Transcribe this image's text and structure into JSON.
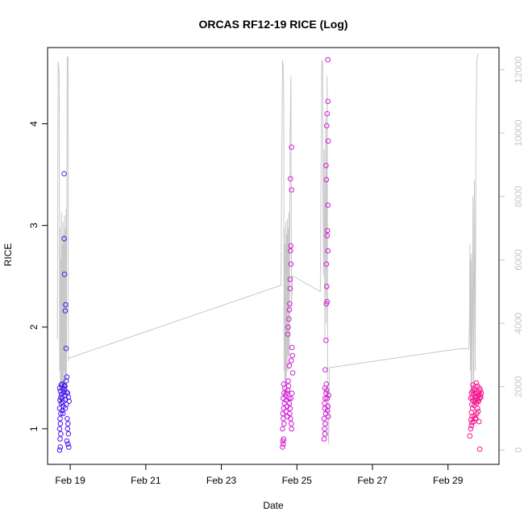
{
  "chart_data": {
    "type": "scatter",
    "title": "ORCAS RF12-19 RICE (Log)",
    "xlabel": "Date",
    "ylabel": "RICE",
    "x_ticks": [
      "Feb 19",
      "Feb 21",
      "Feb 23",
      "Feb 25",
      "Feb 27",
      "Feb 29"
    ],
    "x_tick_days": [
      19,
      21,
      23,
      25,
      27,
      29
    ],
    "xlim_days": [
      18.4,
      30.35
    ],
    "y_ticks": [
      "1",
      "2",
      "3",
      "4"
    ],
    "ylim": [
      0.65,
      4.75
    ],
    "y2_ticks": [
      "0",
      "2000",
      "4000",
      "6000",
      "8000",
      "10000",
      "12000"
    ],
    "y2lim": [
      -450,
      12700
    ],
    "grid": false,
    "series": [
      {
        "color": "#4b16f0",
        "points": [
          [
            18.72,
            0.79
          ],
          [
            18.74,
            0.82
          ],
          [
            18.73,
            0.9
          ],
          [
            18.75,
            0.95
          ],
          [
            18.72,
            1.0
          ],
          [
            18.74,
            1.05
          ],
          [
            18.73,
            1.1
          ],
          [
            18.75,
            1.15
          ],
          [
            18.72,
            1.2
          ],
          [
            18.76,
            1.25
          ],
          [
            18.73,
            1.28
          ],
          [
            18.75,
            1.31
          ],
          [
            18.77,
            1.34
          ],
          [
            18.74,
            1.37
          ],
          [
            18.72,
            1.4
          ],
          [
            18.76,
            1.43
          ],
          [
            18.78,
            1.3
          ],
          [
            18.8,
            1.26
          ],
          [
            18.82,
            1.22
          ],
          [
            18.79,
            1.18
          ],
          [
            18.81,
            1.15
          ],
          [
            18.83,
            1.36
          ],
          [
            18.85,
            1.39
          ],
          [
            18.84,
            1.42
          ],
          [
            18.86,
            1.33
          ],
          [
            18.88,
            1.29
          ],
          [
            18.9,
            1.24
          ],
          [
            18.87,
            1.2
          ],
          [
            18.92,
            1.1
          ],
          [
            18.94,
            1.05
          ],
          [
            18.93,
            1.0
          ],
          [
            18.95,
            0.95
          ],
          [
            18.91,
            0.88
          ],
          [
            18.94,
            0.85
          ],
          [
            18.96,
            0.82
          ],
          [
            18.93,
            1.35
          ],
          [
            18.95,
            1.31
          ],
          [
            18.97,
            1.27
          ],
          [
            18.89,
            1.47
          ],
          [
            18.91,
            1.51
          ],
          [
            18.84,
            3.51
          ],
          [
            18.84,
            2.87
          ],
          [
            18.85,
            2.52
          ],
          [
            18.87,
            2.16
          ],
          [
            18.88,
            2.22
          ],
          [
            18.89,
            1.79
          ],
          [
            18.8,
            1.4
          ],
          [
            18.78,
            1.44
          ],
          [
            18.86,
            1.42
          ],
          [
            18.9,
            1.36
          ]
        ]
      },
      {
        "color": "#d21ad8",
        "points": [
          [
            24.62,
            0.82
          ],
          [
            24.64,
            0.85
          ],
          [
            24.63,
            0.88
          ],
          [
            24.65,
            0.9
          ],
          [
            24.62,
            1.0
          ],
          [
            24.66,
            1.05
          ],
          [
            24.64,
            1.1
          ],
          [
            24.63,
            1.15
          ],
          [
            24.65,
            1.2
          ],
          [
            24.67,
            1.25
          ],
          [
            24.64,
            1.3
          ],
          [
            24.66,
            1.35
          ],
          [
            24.68,
            1.4
          ],
          [
            24.65,
            1.44
          ],
          [
            24.7,
            1.33
          ],
          [
            24.72,
            1.28
          ],
          [
            24.74,
            1.22
          ],
          [
            24.71,
            1.17
          ],
          [
            24.75,
            1.12
          ],
          [
            24.73,
            1.35
          ],
          [
            24.76,
            1.38
          ],
          [
            24.78,
            1.42
          ],
          [
            24.77,
            1.47
          ],
          [
            24.79,
            1.3
          ],
          [
            24.8,
            1.25
          ],
          [
            24.82,
            1.2
          ],
          [
            24.81,
            1.15
          ],
          [
            24.83,
            1.1
          ],
          [
            24.85,
            1.05
          ],
          [
            24.86,
            1.0
          ],
          [
            24.84,
            1.3
          ],
          [
            24.87,
            1.35
          ],
          [
            24.76,
            1.93
          ],
          [
            24.77,
            2.0
          ],
          [
            24.79,
            2.08
          ],
          [
            24.8,
            2.17
          ],
          [
            24.81,
            2.23
          ],
          [
            24.82,
            2.38
          ],
          [
            24.82,
            2.47
          ],
          [
            24.84,
            2.62
          ],
          [
            24.83,
            2.75
          ],
          [
            24.84,
            2.8
          ],
          [
            24.83,
            3.46
          ],
          [
            24.86,
            3.35
          ],
          [
            24.86,
            3.77
          ],
          [
            24.88,
            1.72
          ],
          [
            24.85,
            1.67
          ],
          [
            24.87,
            1.8
          ],
          [
            24.89,
            1.55
          ],
          [
            24.8,
            1.62
          ],
          [
            25.72,
            0.9
          ],
          [
            25.74,
            0.95
          ],
          [
            25.73,
            1.0
          ],
          [
            25.75,
            1.05
          ],
          [
            25.72,
            1.1
          ],
          [
            25.76,
            1.15
          ],
          [
            25.74,
            1.2
          ],
          [
            25.73,
            1.25
          ],
          [
            25.75,
            1.3
          ],
          [
            25.77,
            1.35
          ],
          [
            25.74,
            1.4
          ],
          [
            25.78,
            1.44
          ],
          [
            25.8,
            1.3
          ],
          [
            25.82,
            1.22
          ],
          [
            25.81,
            1.18
          ],
          [
            25.83,
            1.12
          ],
          [
            25.79,
            1.38
          ],
          [
            25.84,
            1.33
          ],
          [
            25.75,
            1.58
          ],
          [
            25.77,
            1.87
          ],
          [
            25.78,
            2.23
          ],
          [
            25.8,
            2.25
          ],
          [
            25.79,
            2.4
          ],
          [
            25.78,
            2.62
          ],
          [
            25.82,
            2.75
          ],
          [
            25.8,
            2.9
          ],
          [
            25.81,
            2.95
          ],
          [
            25.82,
            3.2
          ],
          [
            25.78,
            3.45
          ],
          [
            25.77,
            3.59
          ],
          [
            25.79,
            3.98
          ],
          [
            25.8,
            4.1
          ],
          [
            25.83,
            3.83
          ],
          [
            25.82,
            4.22
          ],
          [
            25.82,
            4.63
          ]
        ]
      },
      {
        "color": "#f5158f",
        "points": [
          [
            29.58,
            0.93
          ],
          [
            29.6,
            1.0
          ],
          [
            29.62,
            1.03
          ],
          [
            29.63,
            1.06
          ],
          [
            29.61,
            1.09
          ],
          [
            29.64,
            1.12
          ],
          [
            29.62,
            1.16
          ],
          [
            29.65,
            1.2
          ],
          [
            29.63,
            1.24
          ],
          [
            29.66,
            1.28
          ],
          [
            29.64,
            1.31
          ],
          [
            29.67,
            1.34
          ],
          [
            29.65,
            1.37
          ],
          [
            29.68,
            1.4
          ],
          [
            29.66,
            1.43
          ],
          [
            29.7,
            1.38
          ],
          [
            29.72,
            1.35
          ],
          [
            29.74,
            1.32
          ],
          [
            29.73,
            1.28
          ],
          [
            29.76,
            1.25
          ],
          [
            29.78,
            1.3
          ],
          [
            29.8,
            1.33
          ],
          [
            29.82,
            1.36
          ],
          [
            29.84,
            1.3
          ],
          [
            29.81,
            1.27
          ],
          [
            29.85,
            1.33
          ],
          [
            29.86,
            1.38
          ],
          [
            29.83,
            1.4
          ],
          [
            29.78,
            1.42
          ],
          [
            29.75,
            1.45
          ],
          [
            29.7,
            1.13
          ],
          [
            29.72,
            1.1
          ],
          [
            29.68,
            1.07
          ],
          [
            29.8,
            1.17
          ],
          [
            29.82,
            1.07
          ],
          [
            29.78,
            1.2
          ],
          [
            29.76,
            1.15
          ],
          [
            29.74,
            1.1
          ],
          [
            29.84,
            0.8
          ],
          [
            29.69,
            1.23
          ],
          [
            29.71,
            1.26
          ],
          [
            29.77,
            1.35
          ],
          [
            29.79,
            1.28
          ],
          [
            29.87,
            1.31
          ],
          [
            29.88,
            1.35
          ],
          [
            29.6,
            1.3
          ],
          [
            29.62,
            1.35
          ]
        ]
      }
    ],
    "altitude_trace": {
      "color": "#c8c8c8",
      "axis": "right",
      "points": [
        [
          18.66,
          3500
        ],
        [
          18.68,
          12250
        ],
        [
          18.7,
          12000
        ],
        [
          18.71,
          11800
        ],
        [
          18.72,
          2500
        ],
        [
          18.73,
          7000
        ],
        [
          18.74,
          1500
        ],
        [
          18.75,
          6000
        ],
        [
          18.76,
          2000
        ],
        [
          18.77,
          7500
        ],
        [
          18.78,
          1200
        ],
        [
          18.79,
          6500
        ],
        [
          18.8,
          1800
        ],
        [
          18.81,
          7200
        ],
        [
          18.82,
          1300
        ],
        [
          18.83,
          6800
        ],
        [
          18.84,
          2500
        ],
        [
          18.85,
          7400
        ],
        [
          18.86,
          1500
        ],
        [
          18.87,
          7000
        ],
        [
          18.88,
          2000
        ],
        [
          18.89,
          7600
        ],
        [
          18.9,
          2200
        ],
        [
          18.92,
          12400
        ],
        [
          18.94,
          12400
        ],
        [
          18.95,
          2800
        ],
        [
          18.96,
          2900
        ],
        [
          24.58,
          5200
        ],
        [
          24.6,
          9000
        ],
        [
          24.62,
          12300
        ],
        [
          24.64,
          12100
        ],
        [
          24.65,
          11000
        ],
        [
          24.66,
          2500
        ],
        [
          24.67,
          7000
        ],
        [
          24.68,
          1800
        ],
        [
          24.69,
          6500
        ],
        [
          24.7,
          2200
        ],
        [
          24.71,
          7200
        ],
        [
          24.72,
          2000
        ],
        [
          24.73,
          6800
        ],
        [
          24.74,
          2500
        ],
        [
          24.75,
          7300
        ],
        [
          24.76,
          3000
        ],
        [
          24.77,
          7000
        ],
        [
          24.78,
          2500
        ],
        [
          24.79,
          7500
        ],
        [
          24.8,
          3000
        ],
        [
          24.82,
          10000
        ],
        [
          24.84,
          11800
        ],
        [
          24.86,
          4500
        ],
        [
          24.88,
          5500
        ],
        [
          25.62,
          5000
        ],
        [
          25.66,
          12300
        ],
        [
          25.68,
          12250
        ],
        [
          25.7,
          5500
        ],
        [
          25.72,
          9500
        ],
        [
          25.74,
          3500
        ],
        [
          25.76,
          10500
        ],
        [
          25.78,
          4000
        ],
        [
          25.8,
          11800
        ],
        [
          25.82,
          500
        ],
        [
          25.84,
          200
        ],
        [
          25.86,
          2600
        ],
        [
          29.32,
          3200
        ],
        [
          29.55,
          3200
        ],
        [
          29.57,
          4000
        ],
        [
          29.58,
          6500
        ],
        [
          29.59,
          2500
        ],
        [
          29.6,
          6000
        ],
        [
          29.61,
          1800
        ],
        [
          29.62,
          6200
        ],
        [
          29.64,
          2000
        ],
        [
          29.66,
          8000
        ],
        [
          29.68,
          1500
        ],
        [
          29.7,
          8500
        ],
        [
          29.72,
          2500
        ],
        [
          29.74,
          10000
        ],
        [
          29.76,
          12200
        ],
        [
          29.78,
          12400
        ],
        [
          29.79,
          12500
        ],
        [
          29.8,
          12500
        ]
      ]
    }
  }
}
